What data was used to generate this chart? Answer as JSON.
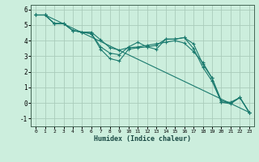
{
  "xlabel": "Humidex (Indice chaleur)",
  "bg_color": "#cceedd",
  "grid_color": "#aaccbb",
  "line_color": "#1a7a6e",
  "xlim": [
    -0.5,
    23.5
  ],
  "ylim": [
    -1.5,
    6.3
  ],
  "yticks": [
    -1,
    0,
    1,
    2,
    3,
    4,
    5,
    6
  ],
  "xticks": [
    0,
    1,
    2,
    3,
    4,
    5,
    6,
    7,
    8,
    9,
    10,
    11,
    12,
    13,
    14,
    15,
    16,
    17,
    18,
    19,
    20,
    21,
    22,
    23
  ],
  "series": [
    {
      "x": [
        0,
        1,
        2,
        3,
        4,
        5,
        6,
        7,
        8,
        9,
        10,
        11,
        12,
        13,
        14,
        15,
        16,
        17,
        18,
        19,
        20,
        21,
        22,
        23
      ],
      "y": [
        5.65,
        5.65,
        5.1,
        5.1,
        4.65,
        4.55,
        4.45,
        3.45,
        2.85,
        2.7,
        3.45,
        3.55,
        3.6,
        3.45,
        4.1,
        4.1,
        4.2,
        3.5,
        2.3,
        1.4,
        0.05,
        0.05,
        0.35,
        -0.6
      ]
    },
    {
      "x": [
        0,
        1,
        2,
        3,
        4,
        5,
        6,
        7,
        8,
        9,
        10,
        11,
        12,
        13,
        14,
        15,
        16,
        17,
        18,
        19,
        20,
        21,
        22,
        23
      ],
      "y": [
        5.65,
        5.65,
        5.1,
        5.1,
        4.65,
        4.55,
        4.45,
        3.6,
        3.2,
        3.1,
        3.6,
        3.9,
        3.6,
        3.7,
        4.1,
        4.1,
        4.2,
        3.8,
        2.5,
        1.6,
        0.05,
        -0.05,
        0.35,
        -0.6
      ]
    },
    {
      "x": [
        0,
        1,
        2,
        3,
        4,
        5,
        6,
        7,
        8,
        9,
        10,
        11,
        12,
        13,
        14,
        15,
        16,
        17,
        18,
        19,
        20,
        21,
        22,
        23
      ],
      "y": [
        5.65,
        5.65,
        5.1,
        5.1,
        4.65,
        4.55,
        4.55,
        4.05,
        3.55,
        3.4,
        3.55,
        3.6,
        3.7,
        3.8,
        3.9,
        4.0,
        3.85,
        3.3,
        2.6,
        1.6,
        0.15,
        0.0,
        0.35,
        -0.6
      ]
    },
    {
      "x": [
        0,
        1,
        23
      ],
      "y": [
        5.65,
        5.65,
        -0.6
      ]
    }
  ]
}
